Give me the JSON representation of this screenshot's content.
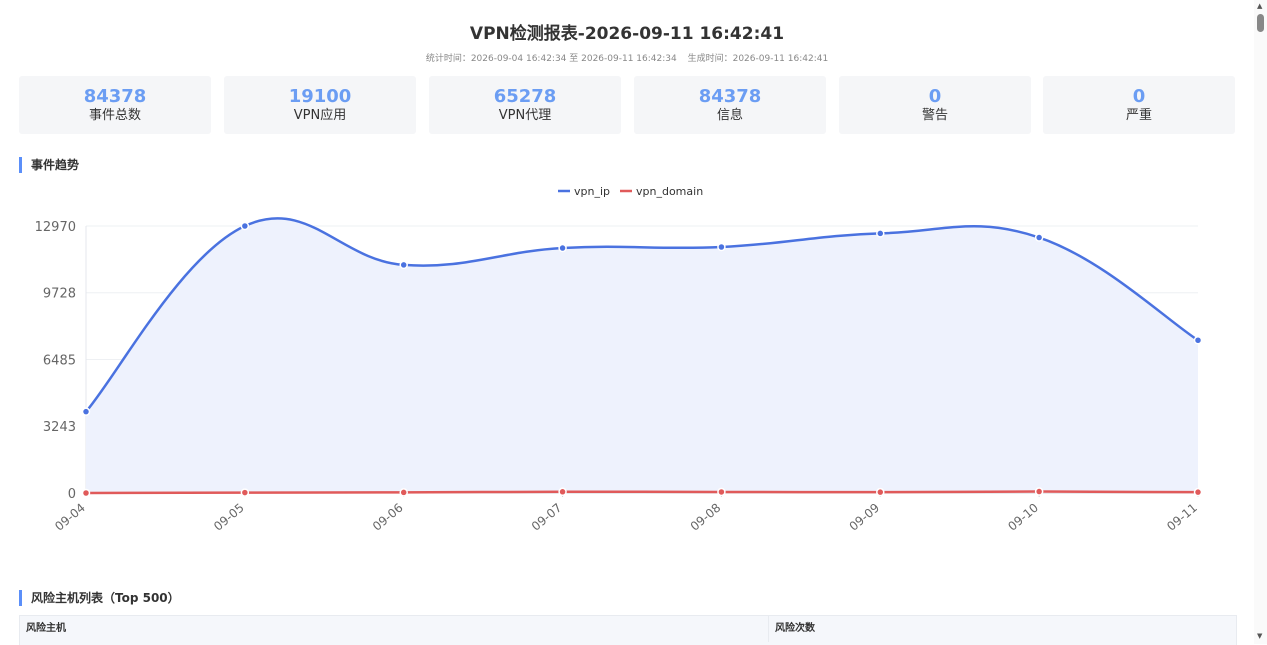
{
  "report": {
    "title": "VPN检测报表-2026-09-11 16:42:41",
    "stat_time": "统计时间：2026-09-04 16:42:34 至 2026-09-11 16:42:34",
    "gen_time": "生成时间：2026-09-11 16:42:41"
  },
  "cards": [
    {
      "value": "84378",
      "label": "事件总数"
    },
    {
      "value": "19100",
      "label": "VPN应用"
    },
    {
      "value": "65278",
      "label": "VPN代理"
    },
    {
      "value": "84378",
      "label": "信息"
    },
    {
      "value": "0",
      "label": "警告"
    },
    {
      "value": "0",
      "label": "严重"
    }
  ],
  "sections": {
    "trend": "事件趋势",
    "hosts": "风险主机列表（Top 500）"
  },
  "table": {
    "headers": [
      "风险主机",
      "风险次数"
    ]
  },
  "colors": {
    "accent": "#5b8ff9",
    "vpn_ip": "#4a72e0",
    "vpn_domain": "#e05a5a",
    "area_fill": "#eef2fd"
  },
  "chart_data": {
    "type": "line",
    "categories": [
      "09-04",
      "09-05",
      "09-06",
      "09-07",
      "09-08",
      "09-09",
      "09-10",
      "09-11"
    ],
    "series": [
      {
        "name": "vpn_ip",
        "values": [
          3950,
          12970,
          11080,
          11900,
          11950,
          12610,
          12410,
          7420
        ],
        "area": true,
        "smooth": true
      },
      {
        "name": "vpn_domain",
        "values": [
          0,
          20,
          30,
          60,
          50,
          40,
          70,
          40
        ],
        "area": false,
        "smooth": true
      }
    ],
    "yticks": [
      "0",
      "3243",
      "6485",
      "9728",
      "12970"
    ],
    "ylim": [
      0,
      12970
    ],
    "legend": "top-center",
    "grid": true
  }
}
